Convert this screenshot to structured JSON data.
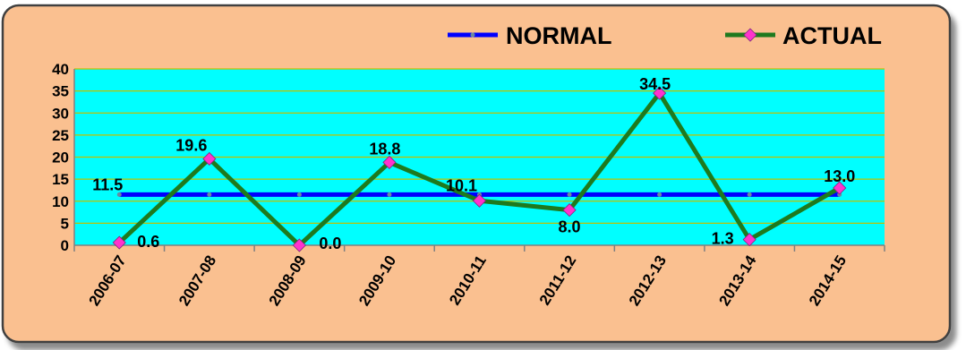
{
  "chart_data": {
    "type": "line",
    "categories": [
      "2006-07",
      "2007-08",
      "2008-09",
      "2009-10",
      "2010-11",
      "2011-12",
      "2012-13",
      "2013-14",
      "2014-15"
    ],
    "series": [
      {
        "name": "NORMAL",
        "values": [
          11.5,
          11.5,
          11.5,
          11.5,
          11.5,
          11.5,
          11.5,
          11.5,
          11.5
        ],
        "color": "#0000ff",
        "label": "11.5"
      },
      {
        "name": "ACTUAL",
        "values": [
          0.6,
          19.6,
          0.0,
          18.8,
          10.1,
          8.0,
          34.5,
          1.3,
          13.0
        ],
        "color": "#1e7a1e",
        "marker_color": "#ff33cc",
        "labels": [
          "0.6",
          "19.6",
          "0.0",
          "18.8",
          "10.1",
          "8.0",
          "34.5",
          "1.3",
          "13.0"
        ]
      }
    ],
    "ylim": [
      0,
      40
    ],
    "yticks": [
      "0",
      "5",
      "10",
      "15",
      "20",
      "25",
      "30",
      "35",
      "40"
    ],
    "legend": "top-right",
    "grid": true,
    "plot_bg": "#00ffff",
    "frame_bg": "#fac090",
    "gridline_color": "#c0c000"
  }
}
